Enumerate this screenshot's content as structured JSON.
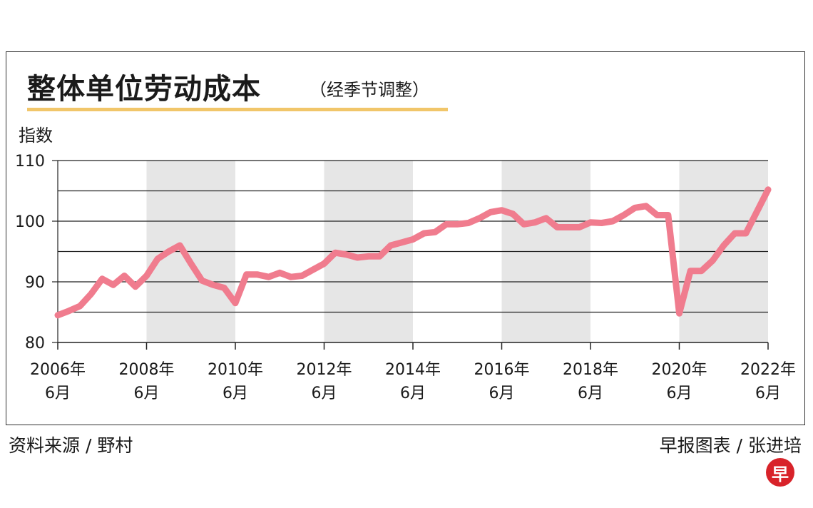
{
  "chart_data": {
    "type": "line",
    "title": "整体单位劳动成本",
    "subtitle": "（经季节调整）",
    "ylabel": "指数",
    "ylim": [
      80,
      110
    ],
    "yticks": [
      80,
      90,
      100,
      110
    ],
    "gridlines": [
      85,
      90,
      95,
      100,
      105,
      110
    ],
    "xlim": [
      2006.5,
      2022.5
    ],
    "xticks": [
      {
        "year": 2006.5,
        "label_year": "2006年",
        "label_month": "6月"
      },
      {
        "year": 2008.5,
        "label_year": "2008年",
        "label_month": "6月"
      },
      {
        "year": 2010.5,
        "label_year": "2010年",
        "label_month": "6月"
      },
      {
        "year": 2012.5,
        "label_year": "2012年",
        "label_month": "6月"
      },
      {
        "year": 2014.5,
        "label_year": "2014年",
        "label_month": "6月"
      },
      {
        "year": 2016.5,
        "label_year": "2016年",
        "label_month": "6月"
      },
      {
        "year": 2018.5,
        "label_year": "2018年",
        "label_month": "6月"
      },
      {
        "year": 2020.5,
        "label_year": "2020年",
        "label_month": "6月"
      },
      {
        "year": 2022.5,
        "label_year": "2022年",
        "label_month": "6月"
      }
    ],
    "shaded_bands": [
      [
        2008.5,
        2010.5
      ],
      [
        2012.5,
        2014.5
      ],
      [
        2016.5,
        2018.5
      ],
      [
        2020.5,
        2022.5
      ]
    ],
    "line_color": "#f07c8e",
    "band_color": "#e6e6e6",
    "series": [
      {
        "points": [
          [
            2006.5,
            84.5
          ],
          [
            2006.75,
            85.2
          ],
          [
            2007.0,
            86.0
          ],
          [
            2007.25,
            88.0
          ],
          [
            2007.5,
            90.5
          ],
          [
            2007.75,
            89.5
          ],
          [
            2008.0,
            91.0
          ],
          [
            2008.25,
            89.2
          ],
          [
            2008.5,
            91.0
          ],
          [
            2008.75,
            93.8
          ],
          [
            2009.0,
            95.0
          ],
          [
            2009.25,
            96.0
          ],
          [
            2009.5,
            93.0
          ],
          [
            2009.75,
            90.2
          ],
          [
            2010.0,
            89.5
          ],
          [
            2010.25,
            89.0
          ],
          [
            2010.5,
            86.5
          ],
          [
            2010.75,
            91.2
          ],
          [
            2011.0,
            91.2
          ],
          [
            2011.25,
            90.8
          ],
          [
            2011.5,
            91.5
          ],
          [
            2011.75,
            90.8
          ],
          [
            2012.0,
            91.0
          ],
          [
            2012.25,
            92.0
          ],
          [
            2012.5,
            93.0
          ],
          [
            2012.75,
            94.8
          ],
          [
            2013.0,
            94.5
          ],
          [
            2013.25,
            94.0
          ],
          [
            2013.5,
            94.2
          ],
          [
            2013.75,
            94.2
          ],
          [
            2014.0,
            96.0
          ],
          [
            2014.25,
            96.5
          ],
          [
            2014.5,
            97.0
          ],
          [
            2014.75,
            98.0
          ],
          [
            2015.0,
            98.2
          ],
          [
            2015.25,
            99.5
          ],
          [
            2015.5,
            99.5
          ],
          [
            2015.75,
            99.7
          ],
          [
            2016.0,
            100.5
          ],
          [
            2016.25,
            101.5
          ],
          [
            2016.5,
            101.8
          ],
          [
            2016.75,
            101.2
          ],
          [
            2017.0,
            99.5
          ],
          [
            2017.25,
            99.8
          ],
          [
            2017.5,
            100.5
          ],
          [
            2017.75,
            99.0
          ],
          [
            2018.0,
            99.0
          ],
          [
            2018.25,
            99.0
          ],
          [
            2018.5,
            99.8
          ],
          [
            2018.75,
            99.7
          ],
          [
            2019.0,
            100.0
          ],
          [
            2019.25,
            101.0
          ],
          [
            2019.5,
            102.2
          ],
          [
            2019.75,
            102.5
          ],
          [
            2020.0,
            101.0
          ],
          [
            2020.25,
            101.0
          ],
          [
            2020.5,
            84.8
          ],
          [
            2020.75,
            91.8
          ],
          [
            2021.0,
            91.8
          ],
          [
            2021.25,
            93.5
          ],
          [
            2021.5,
            96.0
          ],
          [
            2021.75,
            98.0
          ],
          [
            2022.0,
            98.0
          ],
          [
            2022.5,
            105.2
          ]
        ]
      }
    ]
  },
  "footer": {
    "source_left": "资料来源 / 野村",
    "source_right": "早报图表 / 张进培",
    "logo": "早"
  }
}
